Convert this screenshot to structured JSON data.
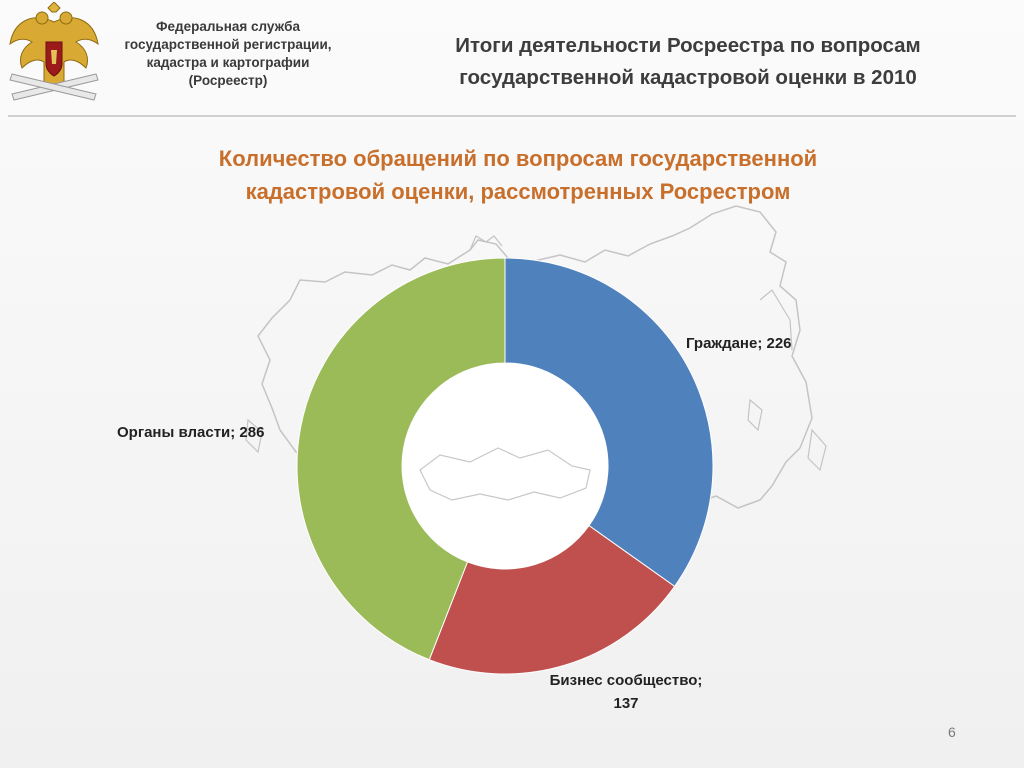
{
  "header": {
    "org_lines": [
      "Федеральная служба",
      "государственной регистрации,",
      "кадастра и картографии",
      "(Росреестр)"
    ],
    "title_lines": [
      "Итоги деятельности Росреестра по вопросам",
      "государственной кадастровой оценки в 2010"
    ],
    "emblem_icon": "double-headed-eagle-emblem-icon"
  },
  "chart_data": {
    "type": "pie",
    "variant": "donut",
    "title_lines": [
      "Количество обращений по вопросам государственной",
      "кадастровой оценки, рассмотренных Росрестром"
    ],
    "slices": [
      {
        "name": "Граждане",
        "value": 226,
        "label": "Граждане; 226",
        "color": "#4f81bd"
      },
      {
        "name": "Бизнес сообщество",
        "value": 137,
        "label_lines": [
          "Бизнес сообщество;",
          "137"
        ],
        "color": "#c0504d"
      },
      {
        "name": "Органы власти",
        "value": 286,
        "label": "Органы власти; 286",
        "color": "#9bbb59"
      }
    ],
    "start_angle_deg": 0,
    "direction": "clockwise",
    "legend": "none"
  },
  "page_number": "6"
}
